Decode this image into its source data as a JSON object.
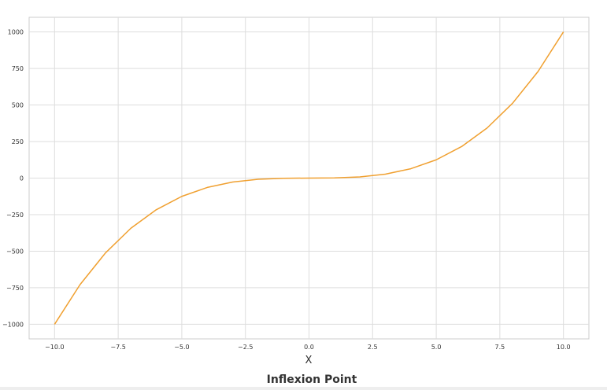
{
  "chart_data": {
    "type": "line",
    "title": "Inflexion Point",
    "xlabel": "X",
    "ylabel": "",
    "xlim": [
      -11,
      11
    ],
    "ylim": [
      -1100,
      1100
    ],
    "xticks": [
      -10.0,
      -7.5,
      -5.0,
      -2.5,
      0.0,
      2.5,
      5.0,
      7.5,
      10.0
    ],
    "xtick_labels": [
      "−10.0",
      "−7.5",
      "−5.0",
      "−2.5",
      "0.0",
      "2.5",
      "5.0",
      "7.5",
      "10.0"
    ],
    "yticks": [
      -1000,
      -750,
      -500,
      -250,
      0,
      250,
      500,
      750,
      1000
    ],
    "ytick_labels": [
      "−1000",
      "−750",
      "−500",
      "−250",
      "0",
      "250",
      "500",
      "750",
      "1000"
    ],
    "grid": true,
    "series": [
      {
        "color": "#f0a030",
        "x": [
          -10,
          -9,
          -8,
          -7,
          -6,
          -5,
          -4,
          -3,
          -2,
          -1,
          0,
          1,
          2,
          3,
          4,
          5,
          6,
          7,
          8,
          9,
          10
        ],
        "y": [
          -1000,
          -729,
          -512,
          -343,
          -216,
          -125,
          -64,
          -27,
          -8,
          -1,
          0,
          1,
          8,
          27,
          64,
          125,
          216,
          343,
          512,
          729,
          1000
        ]
      }
    ]
  }
}
